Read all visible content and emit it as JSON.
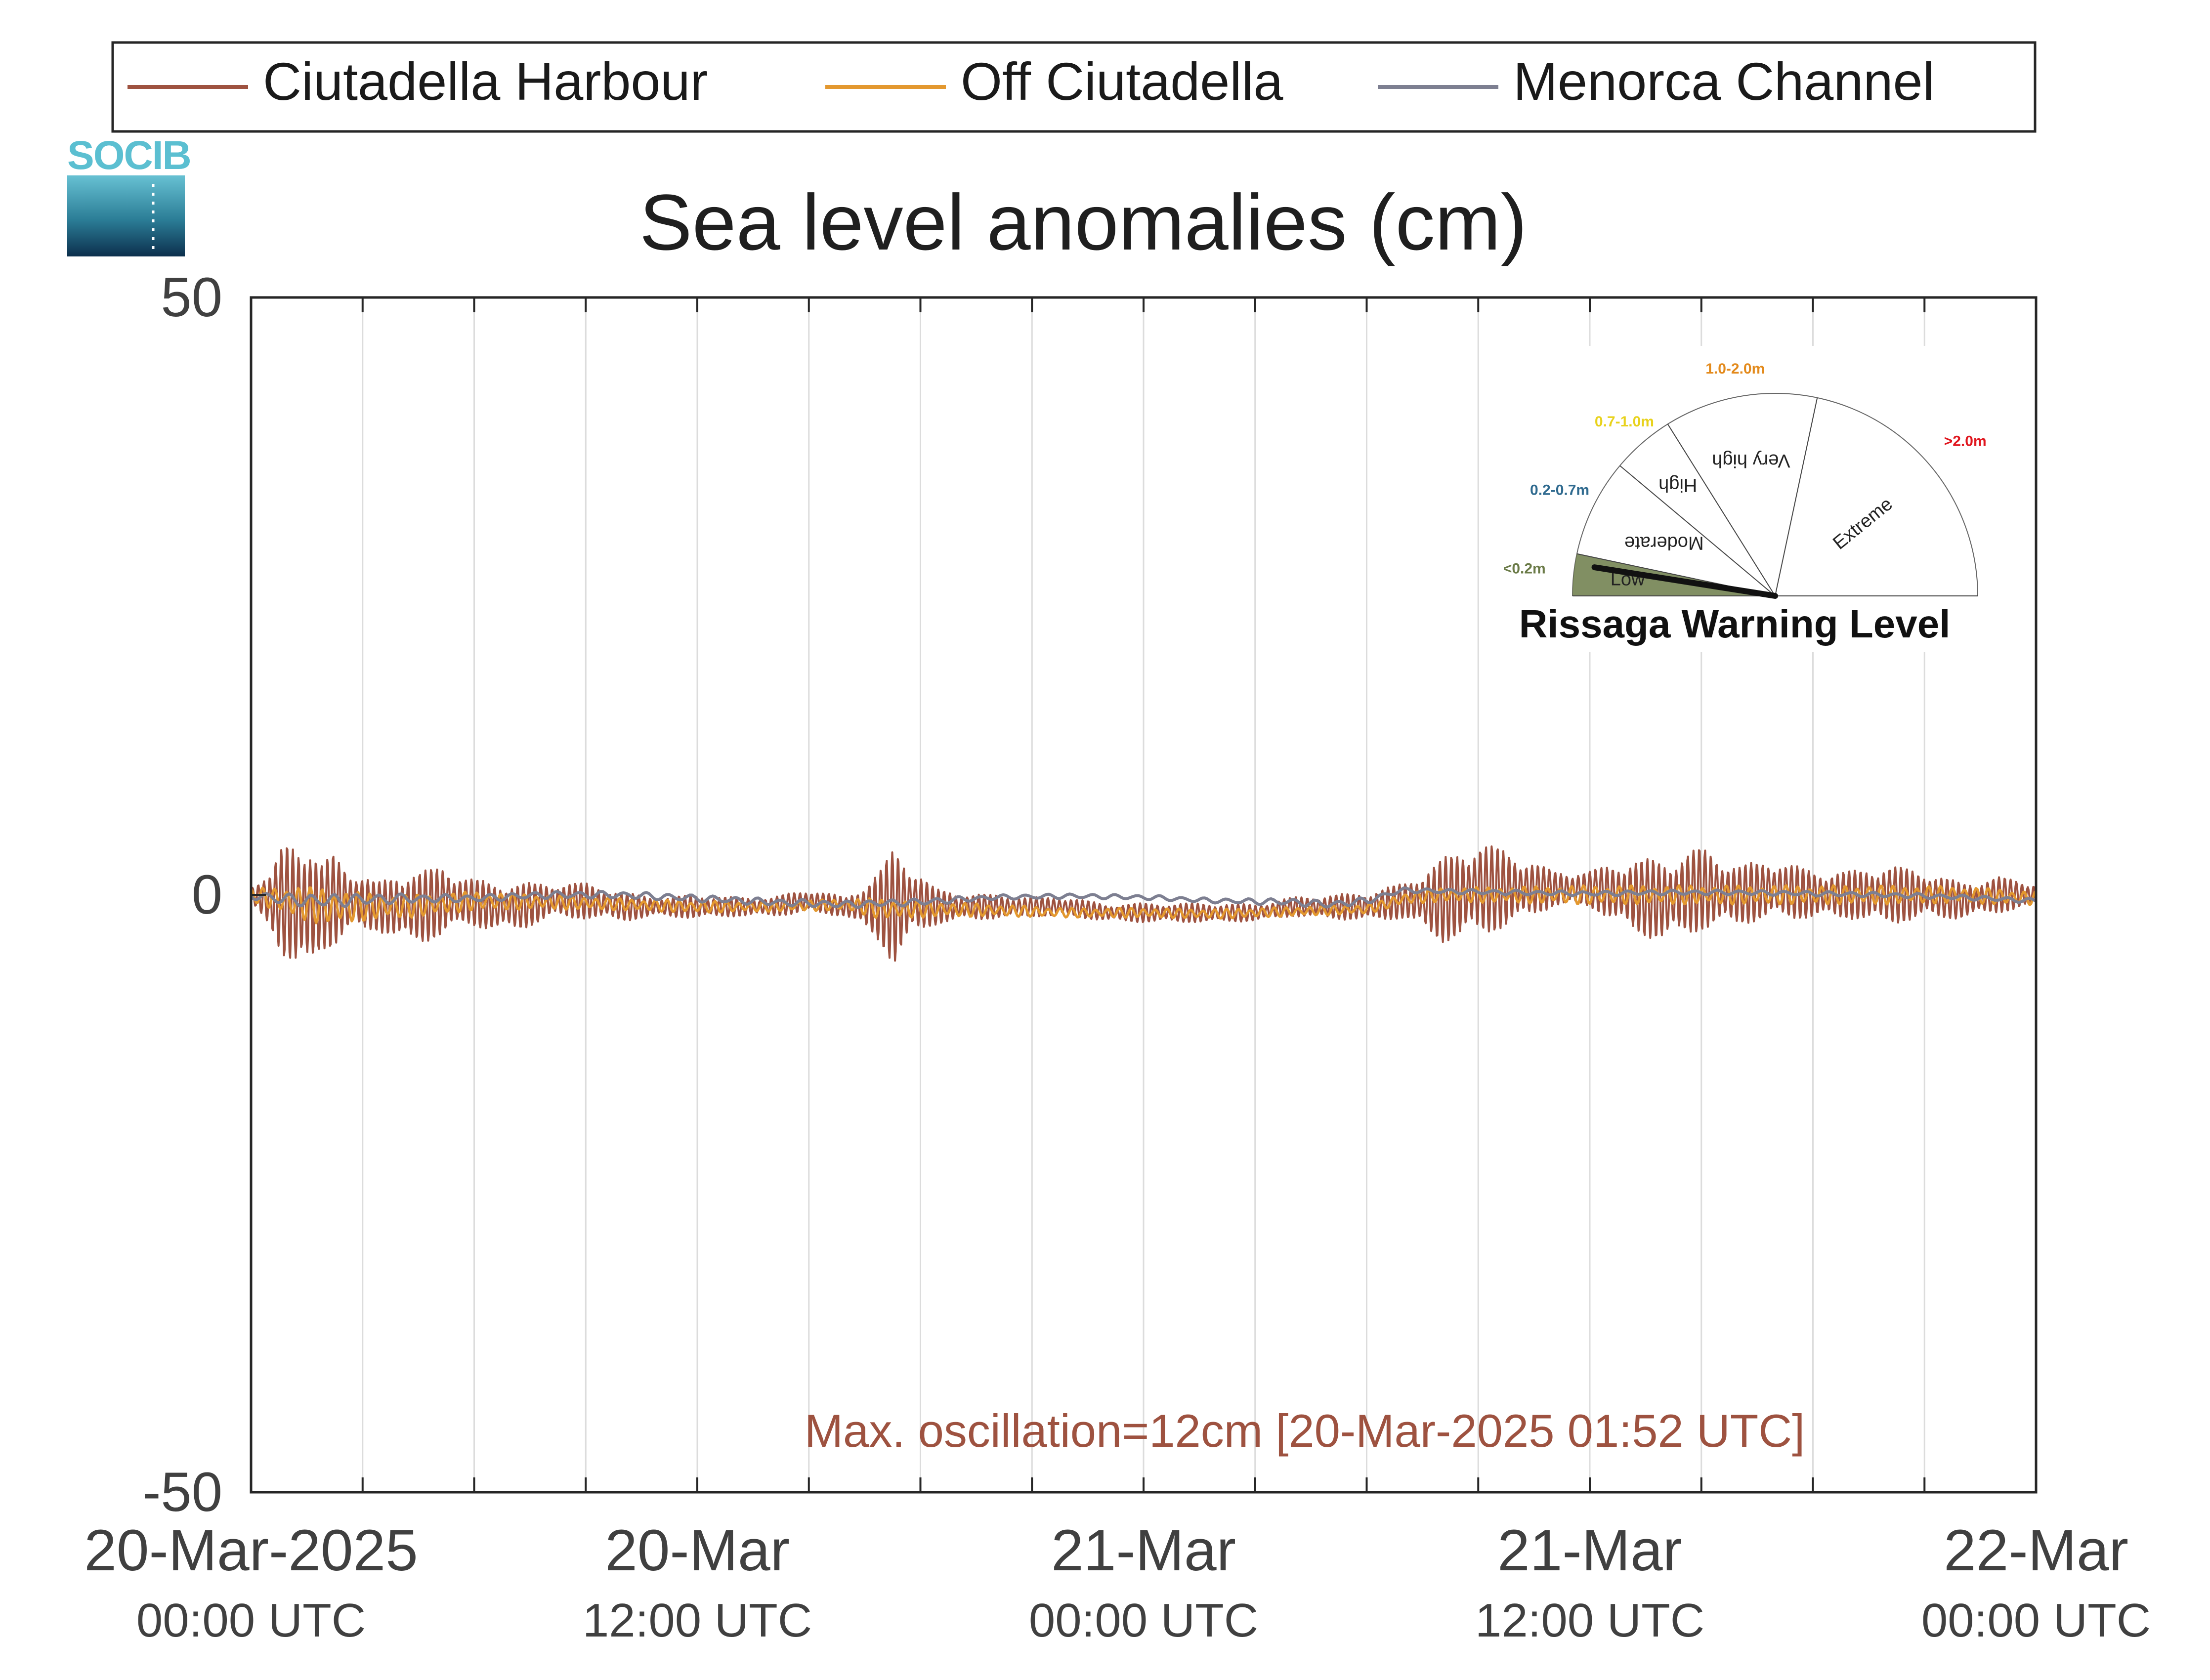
{
  "logo": {
    "text": "SOCIB"
  },
  "legend": [
    {
      "name": "Ciutadella Harbour",
      "color": "#9e5240"
    },
    {
      "name": "Off Ciutadella",
      "color": "#e3982f"
    },
    {
      "name": "Menorca Channel",
      "color": "#7d7f91"
    }
  ],
  "annotation": {
    "text": "Max. oscillation=12cm [20-Mar-2025 01:52 UTC]",
    "color": "#9e5240"
  },
  "gauge": {
    "title": "Rissaga Warning Level",
    "needle_value": 0.15,
    "segments": [
      {
        "name": "Low",
        "range": "<0.2m",
        "color": "#6b7b48"
      },
      {
        "name": "Moderate",
        "range": "0.2-0.7m",
        "color": "#2f6a8f"
      },
      {
        "name": "High",
        "range": "0.7-1.0m",
        "color": "#e8d21c"
      },
      {
        "name": "Very high",
        "range": "1.0-2.0m",
        "color": "#e38a1c"
      },
      {
        "name": "Extreme",
        "range": ">2.0m",
        "color": "#e0161e"
      }
    ]
  },
  "chart_data": {
    "type": "line",
    "title": "Sea level anomalies (cm)",
    "ylim": [
      -50,
      50
    ],
    "yticks": [
      -50,
      0,
      50
    ],
    "xlim": [
      "2025-03-20 00:00",
      "2025-03-22 00:00"
    ],
    "grid": "vertical every 3 hours",
    "legend_placement": "top",
    "xticks": [
      {
        "line1": "20-Mar-2025",
        "line2": "00:00 UTC"
      },
      {
        "line1": "20-Mar",
        "line2": "12:00 UTC"
      },
      {
        "line1": "21-Mar",
        "line2": "00:00 UTC"
      },
      {
        "line1": "21-Mar",
        "line2": "12:00 UTC"
      },
      {
        "line1": "22-Mar",
        "line2": "00:00 UTC"
      }
    ],
    "series": [
      {
        "name": "Ciutadella Harbour",
        "x_hours": [
          0,
          0.5,
          0.9,
          1.3,
          1.9,
          2.2,
          2.8,
          3.4,
          4,
          4.6,
          5.2,
          5.8,
          6.5,
          7.2,
          8,
          9,
          10,
          11,
          12,
          13,
          14,
          15,
          16,
          16.9,
          17.3,
          17.8,
          18.4,
          19,
          20,
          21,
          22,
          23,
          24,
          25,
          26,
          27,
          28,
          29,
          30,
          31,
          32,
          33,
          34,
          35,
          36,
          37,
          38,
          39,
          40,
          41,
          42,
          43,
          44,
          45,
          46,
          47,
          48
        ],
        "center_cm": [
          0,
          -0.5,
          -0.5,
          -1,
          -1,
          -0.5,
          -0.5,
          -1,
          -1,
          -1,
          -0.5,
          -0.5,
          -1,
          -1,
          -0.5,
          -0.5,
          -1,
          -1,
          -1,
          -1,
          -1,
          -0.5,
          -1,
          -1,
          -1,
          -0.5,
          -1,
          -1,
          -1,
          -1,
          -1,
          -1.5,
          -1.5,
          -1.5,
          -1.5,
          -1.5,
          -1,
          -1,
          -1,
          -0.5,
          -0.5,
          0.5,
          0.5,
          0.5,
          0.5,
          0,
          -0.5,
          0.5,
          0,
          0.5,
          0,
          0,
          0,
          0,
          -0.5,
          0,
          0
        ],
        "amplitude_cm": [
          1,
          2,
          5,
          6.5,
          3.5,
          4,
          2.5,
          2,
          3,
          3,
          3,
          2,
          2,
          2,
          1.5,
          1.5,
          1.2,
          0.8,
          1,
          0.8,
          0.8,
          1,
          0.8,
          3,
          5,
          3,
          1.5,
          1.2,
          1,
          0.8,
          0.8,
          0.7,
          0.8,
          0.8,
          0.8,
          0.7,
          0.8,
          1,
          1.2,
          1.5,
          3.5,
          4,
          3,
          1.5,
          1.5,
          3,
          3.5,
          3.5,
          2.5,
          2.5,
          2,
          2,
          2.5,
          2,
          1.5,
          1.5,
          1
        ]
      },
      {
        "name": "Off Ciutadella",
        "x_hours": [
          0,
          1,
          2,
          3,
          4,
          5,
          6,
          8,
          10,
          12,
          14,
          16,
          17,
          18,
          20,
          22,
          24,
          26,
          28,
          30,
          30.5,
          31,
          32,
          34,
          36,
          38,
          40,
          42,
          44,
          46,
          48
        ],
        "center_cm": [
          0,
          -0.5,
          -1,
          -1,
          -1,
          -0.8,
          -0.5,
          -0.6,
          -0.8,
          -1,
          -1,
          -0.8,
          -1.2,
          -1.2,
          -1.3,
          -1.5,
          -1.5,
          -1.6,
          -1.4,
          -1.2,
          -0.8,
          -0.3,
          0,
          0,
          0,
          0,
          0,
          0,
          0,
          0,
          -0.3
        ],
        "amplitude_cm": [
          0.5,
          1.3,
          1.6,
          1.2,
          1,
          0.9,
          0.8,
          0.6,
          0.5,
          0.5,
          0.4,
          0.5,
          0.9,
          0.7,
          0.5,
          0.4,
          0.4,
          0.4,
          0.4,
          0.4,
          0.4,
          0.5,
          0.6,
          0.7,
          0.8,
          0.8,
          0.8,
          0.8,
          0.8,
          0.7,
          0.6
        ]
      },
      {
        "name": "Menorca Channel",
        "x_hours": [
          0,
          1,
          2,
          4,
          6,
          8,
          10,
          12,
          14,
          16,
          18,
          20,
          22,
          24,
          26,
          28,
          29,
          30,
          30.5,
          31,
          32,
          34,
          36,
          38,
          40,
          42,
          44,
          46,
          48
        ],
        "center_cm": [
          0,
          -0.4,
          -0.5,
          -0.3,
          -0.3,
          0,
          0,
          -0.3,
          -0.6,
          -0.8,
          -0.6,
          -0.2,
          -0.1,
          -0.2,
          -0.5,
          -0.6,
          -0.8,
          -0.5,
          0,
          0.4,
          0.3,
          0.2,
          0.1,
          0.2,
          0.2,
          0.1,
          0,
          -0.2,
          -0.5
        ],
        "amplitude_cm": [
          0.4,
          0.5,
          0.6,
          0.4,
          0.3,
          0.3,
          0.3,
          0.3,
          0.3,
          0.3,
          0.3,
          0.2,
          0.2,
          0.2,
          0.2,
          0.3,
          0.3,
          0.3,
          0.2,
          0.2,
          0.2,
          0.2,
          0.2,
          0.2,
          0.2,
          0.2,
          0.2,
          0.2,
          0.2
        ]
      }
    ]
  }
}
